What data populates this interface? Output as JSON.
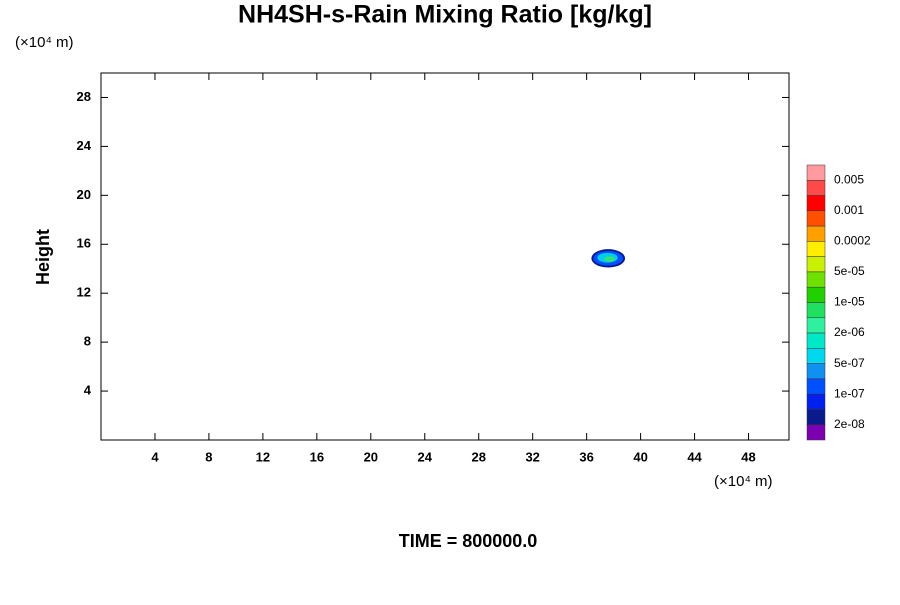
{
  "chart_data": {
    "type": "contour",
    "title": "NH4SH-s-Rain Mixing Ratio [kg/kg]",
    "y_label": "Height",
    "y_unit": "(×10⁴ m)",
    "x_unit": "(×10⁴ m)",
    "time_label": "TIME = 800000.0",
    "xlim": [
      0,
      51
    ],
    "xticks": [
      4,
      8,
      12,
      16,
      20,
      24,
      28,
      32,
      36,
      40,
      44,
      48
    ],
    "ylim": [
      0,
      30
    ],
    "yticks": [
      4,
      8,
      12,
      16,
      20,
      24,
      28
    ],
    "regions": [
      {
        "color": "#0a1a8c",
        "x": 37.6,
        "y": 14.85,
        "width": 2.5,
        "height": 1.5
      },
      {
        "color": "#0050ff",
        "x": 37.6,
        "y": 14.85,
        "width": 2.2,
        "height": 1.2
      },
      {
        "color": "#00ccee",
        "x": 37.55,
        "y": 14.9,
        "width": 1.5,
        "height": 0.8
      },
      {
        "color": "#33e07a",
        "x": 37.7,
        "y": 14.8,
        "width": 0.8,
        "height": 0.45
      }
    ],
    "colorbar": {
      "colors": [
        "#ff9aa0",
        "#ff4a4a",
        "#ff0000",
        "#ff5000",
        "#ffa000",
        "#ffee00",
        "#c8f000",
        "#70e000",
        "#22d000",
        "#20e060",
        "#30f0a0",
        "#00e8c8",
        "#00d8f0",
        "#1090f0",
        "#0050ff",
        "#0020f0",
        "#0a1a8c",
        "#7a00b0"
      ],
      "labels": [
        0.005,
        0.001,
        0.0002,
        {
          "value": 5e-05,
          "label": "5e-05"
        },
        {
          "value": 1e-05,
          "label": "1e-05"
        },
        {
          "value": 2e-06,
          "label": "2e-06"
        },
        {
          "value": 5e-07,
          "label": "5e-07"
        },
        {
          "value": 1e-07,
          "label": "1e-07"
        },
        {
          "value": 2e-08,
          "label": "2e-08"
        }
      ]
    }
  }
}
